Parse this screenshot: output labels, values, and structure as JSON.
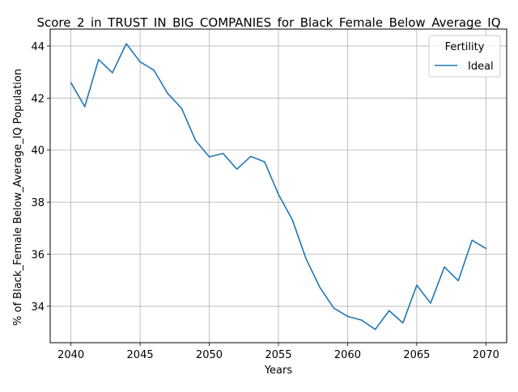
{
  "chart_data": {
    "type": "line",
    "title": "Score_2_in_TRUST_IN_BIG_COMPANIES_for_Black_Female_Below_Average_IQ",
    "xlabel": "Years",
    "ylabel": "% of Black_Female Below_Average_IQ Population",
    "xlim": [
      2038.5,
      2071.5
    ],
    "ylim": [
      32.6,
      44.65
    ],
    "xticks": [
      2040,
      2045,
      2050,
      2055,
      2060,
      2065,
      2070
    ],
    "yticks": [
      34,
      36,
      38,
      40,
      42,
      44
    ],
    "grid": true,
    "legend": {
      "title": "Fertility",
      "position": "top-right"
    },
    "series": [
      {
        "name": "Ideal",
        "color": "#1f77b4",
        "x": [
          2040,
          2041,
          2042,
          2043,
          2044,
          2045,
          2046,
          2047,
          2048,
          2049,
          2050,
          2051,
          2052,
          2053,
          2054,
          2055,
          2056,
          2057,
          2058,
          2059,
          2060,
          2061,
          2062,
          2063,
          2064,
          2065,
          2066,
          2067,
          2068,
          2069,
          2070
        ],
        "y": [
          42.59,
          41.67,
          43.48,
          42.97,
          44.09,
          43.39,
          43.07,
          42.17,
          41.61,
          40.38,
          39.74,
          39.87,
          39.27,
          39.76,
          39.55,
          38.3,
          37.33,
          35.82,
          34.72,
          33.93,
          33.61,
          33.47,
          33.11,
          33.83,
          33.36,
          34.81,
          34.12,
          35.51,
          34.98,
          36.54,
          36.22
        ]
      }
    ]
  }
}
